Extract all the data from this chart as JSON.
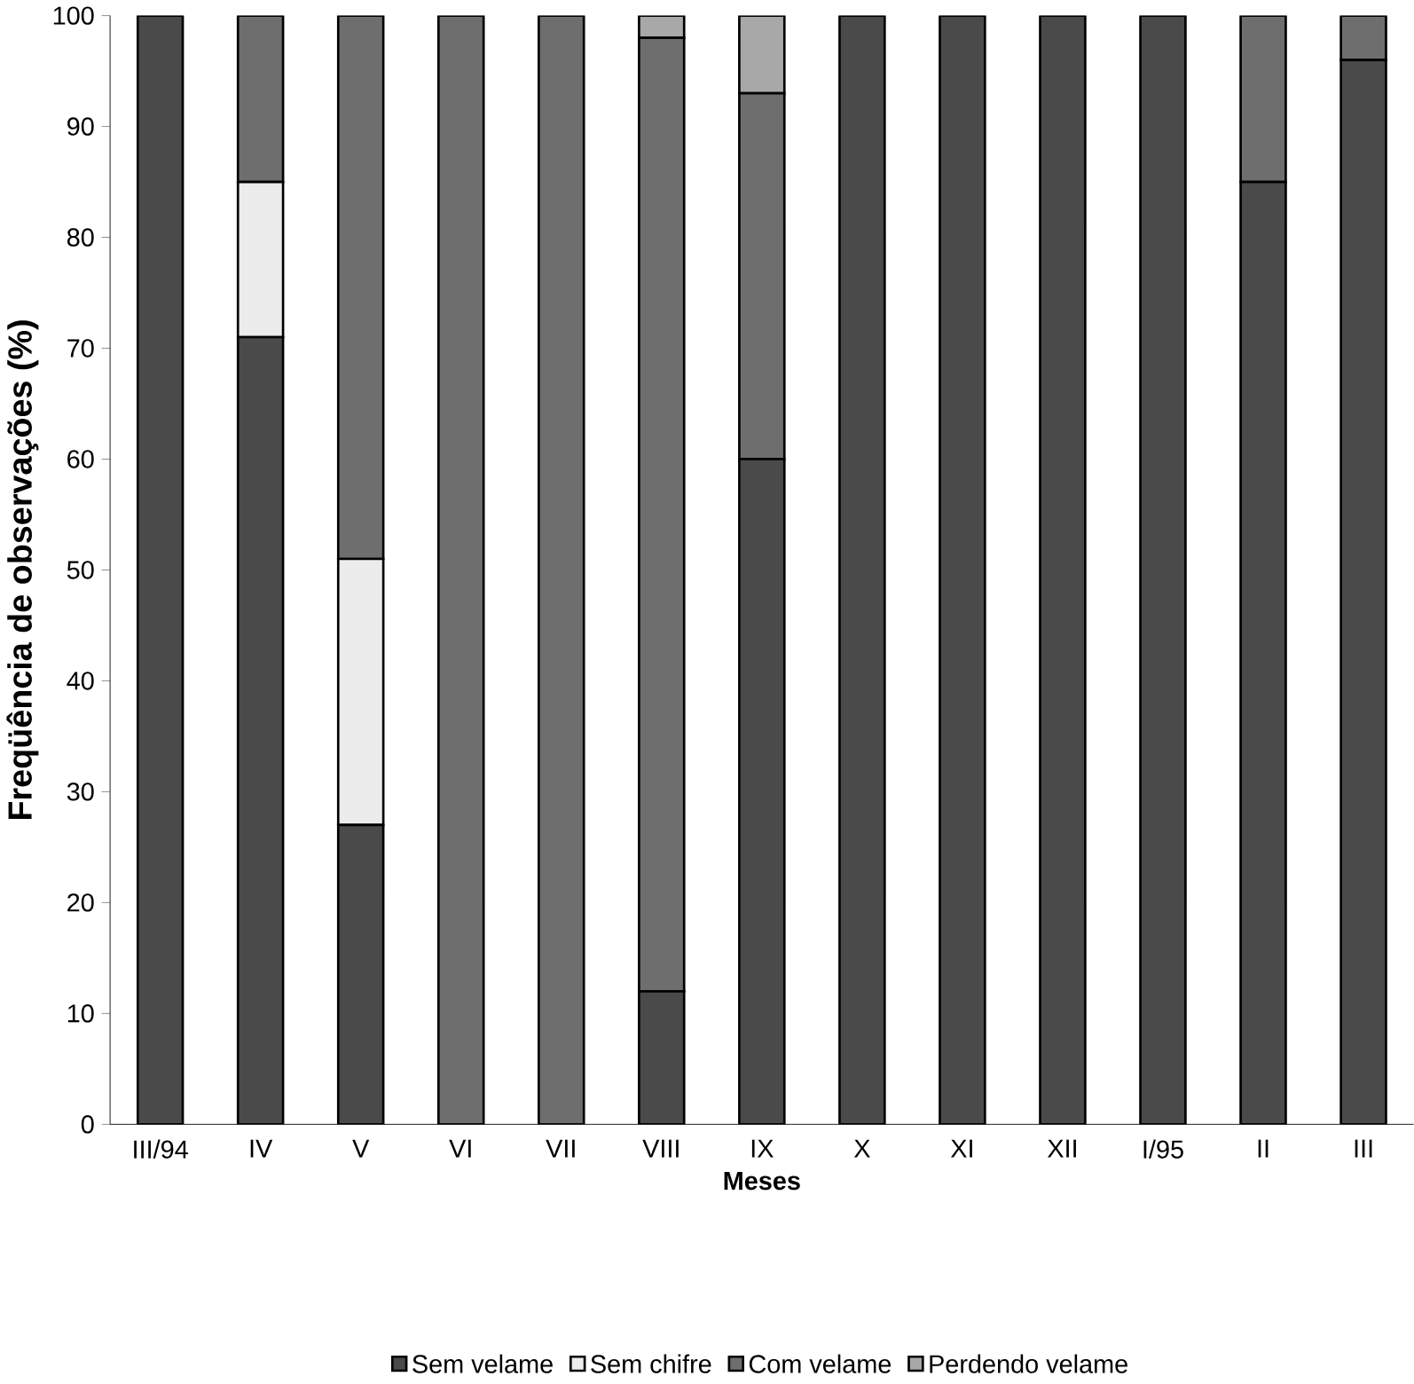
{
  "chart_data": {
    "type": "bar",
    "stacked": true,
    "xlabel": "Meses",
    "ylabel": "Freqüência de observações (%)",
    "categories": [
      "III/94",
      "IV",
      "V",
      "VI",
      "VII",
      "VIII",
      "IX",
      "X",
      "XI",
      "XII",
      "I/95",
      "II",
      "III"
    ],
    "series": [
      {
        "name": "Sem velame",
        "color": "#4a4a4a",
        "values": [
          100,
          71,
          27,
          0,
          0,
          12,
          60,
          100,
          100,
          100,
          100,
          85,
          96
        ]
      },
      {
        "name": "Sem chifre",
        "color": "#ececec",
        "values": [
          0,
          14,
          24,
          0,
          0,
          0,
          0,
          0,
          0,
          0,
          0,
          0,
          0
        ]
      },
      {
        "name": "Com velame",
        "color": "#6e6e6e",
        "values": [
          0,
          15,
          49,
          100,
          100,
          86,
          33,
          0,
          0,
          0,
          0,
          15,
          4
        ]
      },
      {
        "name": "Perdendo velame",
        "color": "#a8a8a8",
        "values": [
          0,
          0,
          0,
          0,
          0,
          2,
          7,
          0,
          0,
          0,
          0,
          0,
          0
        ]
      }
    ],
    "ylim": [
      0,
      100
    ],
    "yticks": [
      0,
      10,
      20,
      30,
      40,
      50,
      60,
      70,
      80,
      90,
      100
    ],
    "legend": "bottom",
    "grid": false
  }
}
